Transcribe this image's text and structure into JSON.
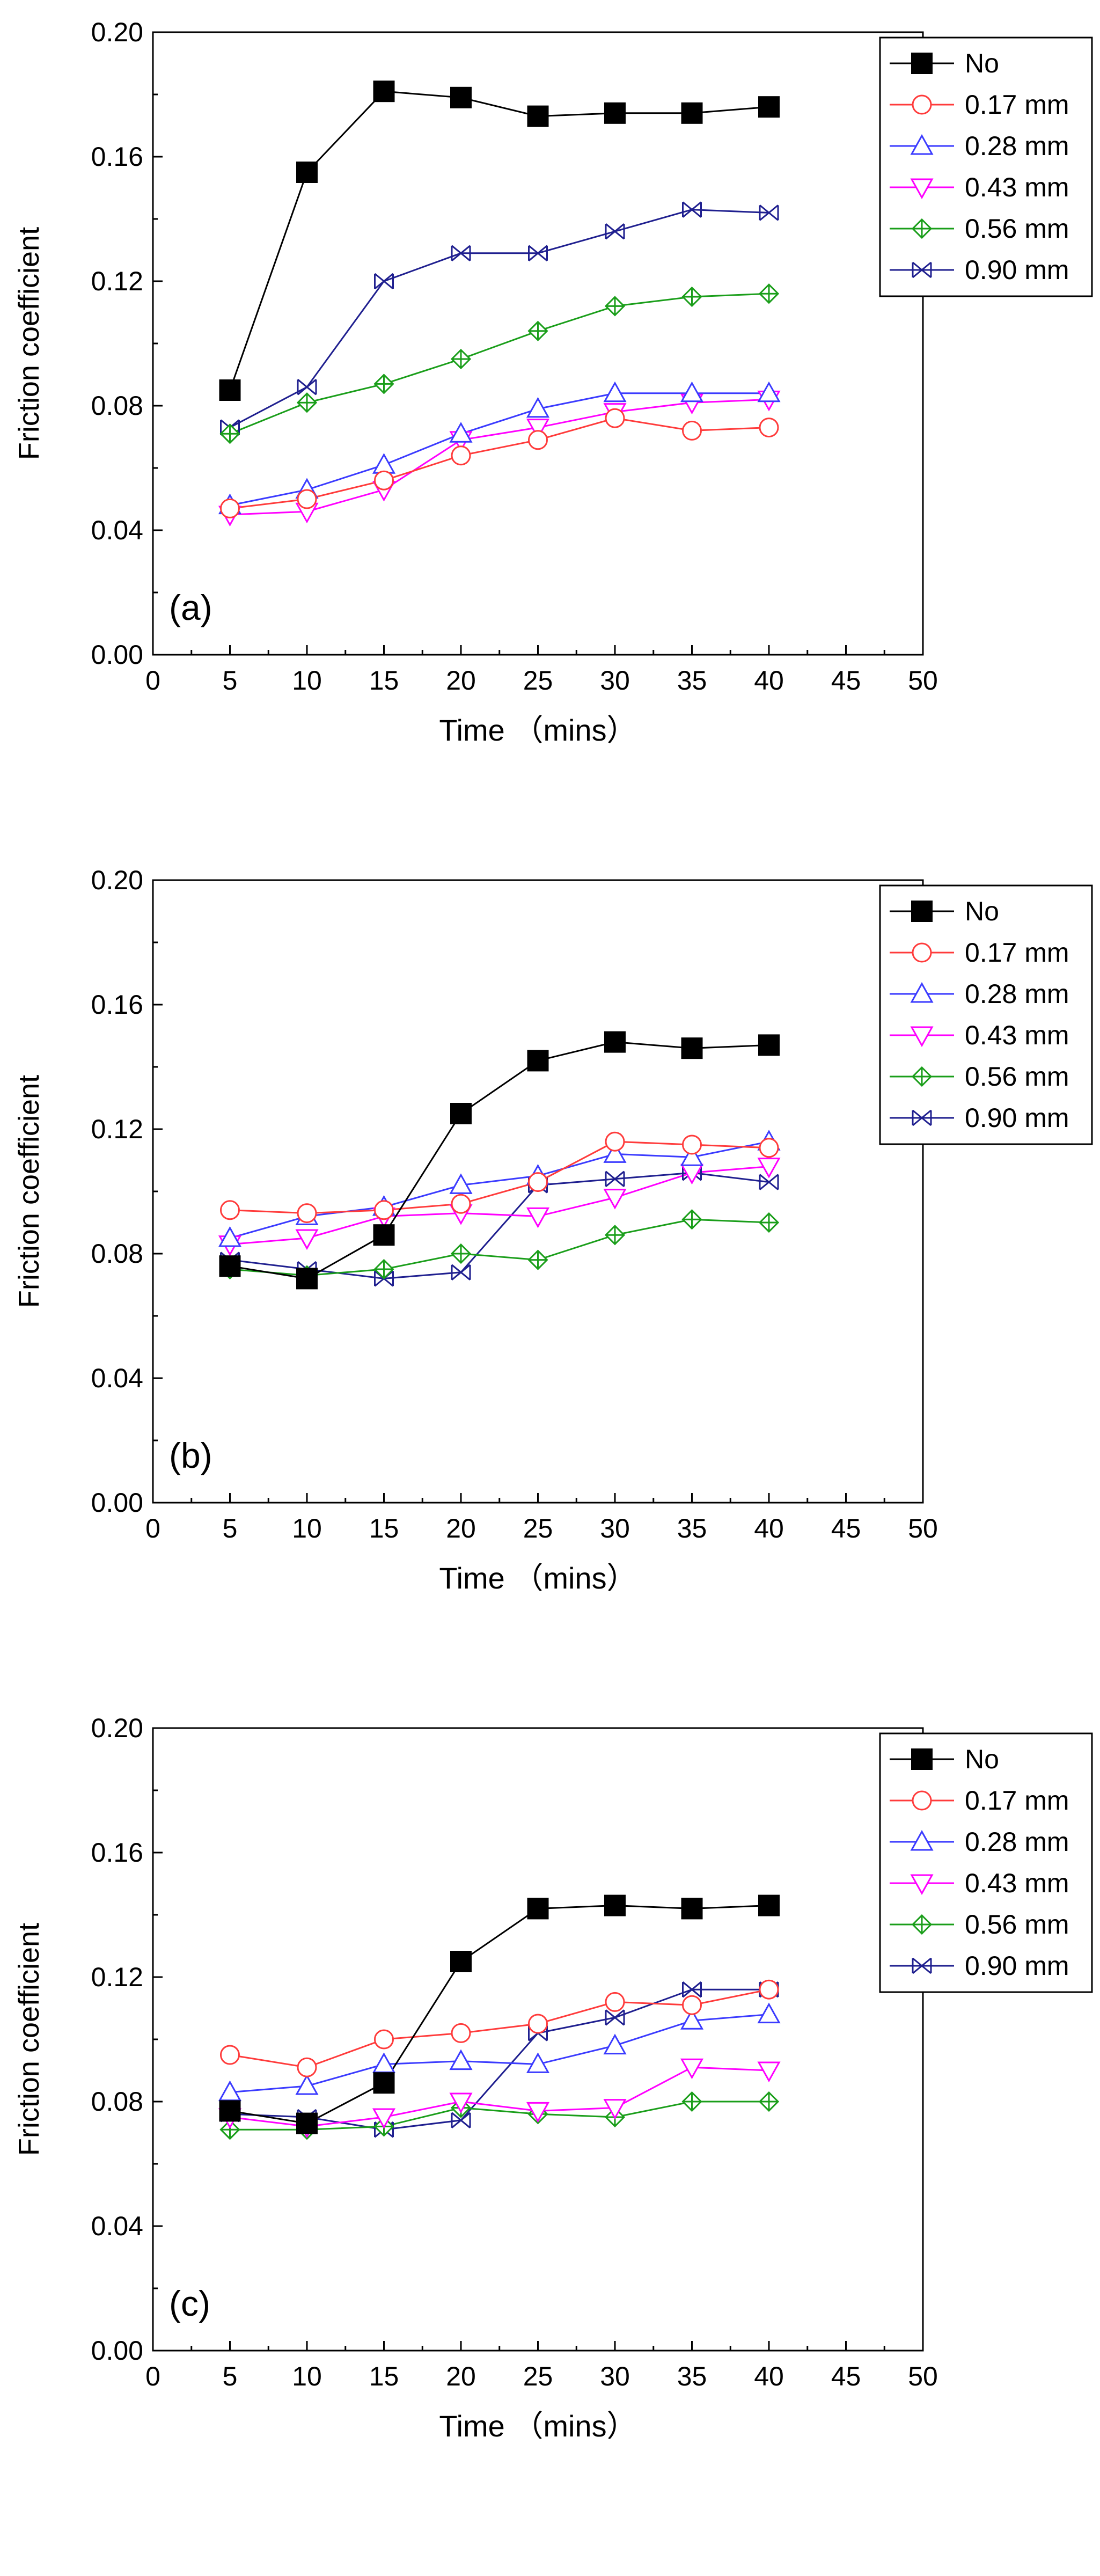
{
  "chart_data": [
    {
      "type": "line",
      "panel_label": "(a)",
      "xlabel": "Time （mins）",
      "ylabel": "Friction coefficient",
      "xlim": [
        0,
        50
      ],
      "ylim": [
        0.0,
        0.2
      ],
      "xticks": [
        "0",
        "5",
        "10",
        "15",
        "20",
        "25",
        "30",
        "35",
        "40",
        "45",
        "50"
      ],
      "yticks": [
        "0.00",
        "0.04",
        "0.08",
        "0.12",
        "0.16",
        "0.20"
      ],
      "grid": false,
      "legend_position": "top-right",
      "x": [
        5,
        10,
        15,
        20,
        25,
        30,
        35,
        40
      ],
      "series": [
        {
          "name": "No",
          "values": [
            0.085,
            0.155,
            0.181,
            0.179,
            0.173,
            0.174,
            0.174,
            0.176
          ]
        },
        {
          "name": "0.17 mm",
          "values": [
            0.047,
            0.05,
            0.056,
            0.064,
            0.069,
            0.076,
            0.072,
            0.073
          ]
        },
        {
          "name": "0.28 mm",
          "values": [
            0.048,
            0.053,
            0.061,
            0.071,
            0.079,
            0.084,
            0.084,
            0.084
          ]
        },
        {
          "name": "0.43 mm",
          "values": [
            0.045,
            0.046,
            0.053,
            0.069,
            0.073,
            0.078,
            0.081,
            0.082
          ]
        },
        {
          "name": "0.56 mm",
          "values": [
            0.071,
            0.081,
            0.087,
            0.095,
            0.104,
            0.112,
            0.115,
            0.116
          ]
        },
        {
          "name": "0.90 mm",
          "values": [
            0.073,
            0.086,
            0.12,
            0.129,
            0.129,
            0.136,
            0.143,
            0.142
          ]
        }
      ]
    },
    {
      "type": "line",
      "panel_label": "(b)",
      "xlabel": "Time （mins）",
      "ylabel": "Friction coefficient",
      "xlim": [
        0,
        50
      ],
      "ylim": [
        0.0,
        0.2
      ],
      "xticks": [
        "0",
        "5",
        "10",
        "15",
        "20",
        "25",
        "30",
        "35",
        "40",
        "45",
        "50"
      ],
      "yticks": [
        "0.00",
        "0.04",
        "0.08",
        "0.12",
        "0.16",
        "0.20"
      ],
      "grid": false,
      "legend_position": "top-right",
      "x": [
        5,
        10,
        15,
        20,
        25,
        30,
        35,
        40
      ],
      "series": [
        {
          "name": "No",
          "values": [
            0.076,
            0.072,
            0.086,
            0.125,
            0.142,
            0.148,
            0.146,
            0.147
          ]
        },
        {
          "name": "0.17 mm",
          "values": [
            0.094,
            0.093,
            0.094,
            0.096,
            0.103,
            0.116,
            0.115,
            0.114
          ]
        },
        {
          "name": "0.28 mm",
          "values": [
            0.085,
            0.092,
            0.095,
            0.102,
            0.105,
            0.112,
            0.111,
            0.116
          ]
        },
        {
          "name": "0.43 mm",
          "values": [
            0.083,
            0.085,
            0.092,
            0.093,
            0.092,
            0.098,
            0.106,
            0.108
          ]
        },
        {
          "name": "0.56 mm",
          "values": [
            0.075,
            0.073,
            0.075,
            0.08,
            0.078,
            0.086,
            0.091,
            0.09
          ]
        },
        {
          "name": "0.90 mm",
          "values": [
            0.078,
            0.075,
            0.072,
            0.074,
            0.102,
            0.104,
            0.106,
            0.103
          ]
        }
      ]
    },
    {
      "type": "line",
      "panel_label": "(c)",
      "xlabel": "Time （mins）",
      "ylabel": "Friction coefficient",
      "xlim": [
        0,
        50
      ],
      "ylim": [
        0.0,
        0.2
      ],
      "xticks": [
        "0",
        "5",
        "10",
        "15",
        "20",
        "25",
        "30",
        "35",
        "40",
        "45",
        "50"
      ],
      "yticks": [
        "0.00",
        "0.04",
        "0.08",
        "0.12",
        "0.16",
        "0.20"
      ],
      "grid": false,
      "legend_position": "top-right",
      "x": [
        5,
        10,
        15,
        20,
        25,
        30,
        35,
        40
      ],
      "series": [
        {
          "name": "No",
          "values": [
            0.077,
            0.073,
            0.086,
            0.125,
            0.142,
            0.143,
            0.142,
            0.143
          ]
        },
        {
          "name": "0.17 mm",
          "values": [
            0.095,
            0.091,
            0.1,
            0.102,
            0.105,
            0.112,
            0.111,
            0.116
          ]
        },
        {
          "name": "0.28 mm",
          "values": [
            0.083,
            0.085,
            0.092,
            0.093,
            0.092,
            0.098,
            0.106,
            0.108
          ]
        },
        {
          "name": "0.43 mm",
          "values": [
            0.075,
            0.072,
            0.075,
            0.08,
            0.077,
            0.078,
            0.091,
            0.09
          ]
        },
        {
          "name": "0.56 mm",
          "values": [
            0.071,
            0.071,
            0.072,
            0.078,
            0.076,
            0.075,
            0.08,
            0.08
          ]
        },
        {
          "name": "0.90 mm",
          "values": [
            0.076,
            0.075,
            0.071,
            0.074,
            0.102,
            0.107,
            0.116,
            0.116
          ]
        }
      ]
    }
  ],
  "series_styles": [
    {
      "color": "#000000",
      "marker": "filled-square-icon"
    },
    {
      "color": "#ff3b3b",
      "marker": "open-circle-icon"
    },
    {
      "color": "#3b3bff",
      "marker": "open-triangle-up-icon"
    },
    {
      "color": "#ff00ff",
      "marker": "open-triangle-down-icon"
    },
    {
      "color": "#1a9e1a",
      "marker": "crossed-diamond-icon"
    },
    {
      "color": "#1f1f8f",
      "marker": "cross-x-icon"
    }
  ]
}
